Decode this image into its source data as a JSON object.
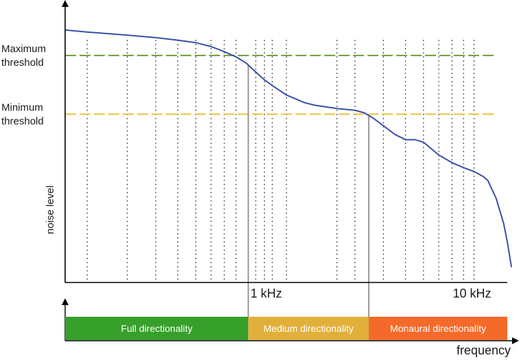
{
  "chart_data": {
    "type": "line",
    "title": "",
    "xlabel": "frequency",
    "ylabel": "noise level",
    "x_scale": "log",
    "xlim_hz": [
      160,
      14000
    ],
    "ylim": [
      0,
      100
    ],
    "grid": "vertical dotted lines at log-spaced frequencies",
    "x_tick_labels": [
      {
        "label": "1 kHz",
        "hz": 1000
      },
      {
        "label": "10 kHz",
        "hz": 10000
      }
    ],
    "grid_hz": [
      200,
      300,
      400,
      500,
      600,
      700,
      800,
      900,
      1100,
      1200,
      1300,
      1500,
      2500,
      3000,
      4000,
      5000,
      6000,
      7000,
      8000,
      9000,
      10000
    ],
    "thresholds": [
      {
        "line1": "Maximum",
        "line2": "threshold",
        "level": 89,
        "color": "#6a9e3a"
      },
      {
        "line1": "Minimum",
        "line2": "threshold",
        "level": 66,
        "color": "#e8c23a"
      }
    ],
    "series": [
      {
        "color": "#3a4fa8",
        "points": [
          [
            160,
            99
          ],
          [
            200,
            98.2
          ],
          [
            300,
            97
          ],
          [
            400,
            96
          ],
          [
            500,
            95
          ],
          [
            600,
            94
          ],
          [
            700,
            92.5
          ],
          [
            800,
            90.5
          ],
          [
            900,
            88.5
          ],
          [
            1000,
            86
          ],
          [
            1100,
            82.5
          ],
          [
            1200,
            79.5
          ],
          [
            1300,
            77.2
          ],
          [
            1500,
            73.5
          ],
          [
            1800,
            70.5
          ],
          [
            2000,
            69.5
          ],
          [
            2500,
            68.2
          ],
          [
            3000,
            67.5
          ],
          [
            3300,
            66.5
          ],
          [
            3600,
            64.5
          ],
          [
            4500,
            58
          ],
          [
            5000,
            56
          ],
          [
            5500,
            56
          ],
          [
            6000,
            55
          ],
          [
            7000,
            50
          ],
          [
            8000,
            47
          ],
          [
            9000,
            45
          ],
          [
            10000,
            43.5
          ],
          [
            11000,
            41.5
          ],
          [
            11500,
            40
          ],
          [
            12500,
            33
          ],
          [
            13500,
            23
          ],
          [
            14000,
            16
          ],
          [
            14600,
            6
          ]
        ]
      }
    ],
    "directionality_bands": [
      {
        "label": "Full directionality",
        "from_hz": 160,
        "to_hz": 1020,
        "color": "#36a02a"
      },
      {
        "label": "Medium directionality",
        "from_hz": 1020,
        "to_hz": 3450,
        "color": "#e2b03a"
      },
      {
        "label": "Monaural directionality",
        "from_hz": 3450,
        "to_hz": 14000,
        "color": "#f46a2a"
      }
    ]
  }
}
